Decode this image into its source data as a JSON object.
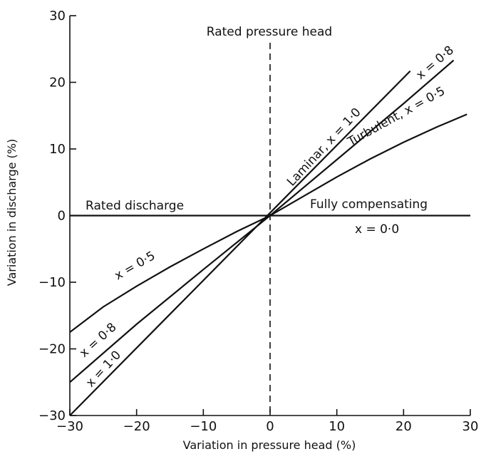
{
  "chart_data": {
    "type": "line",
    "xlabel": "Variation in pressure head (%)",
    "ylabel": "Variation in discharge (%)",
    "xlim": [
      -30,
      30
    ],
    "ylim": [
      -30,
      30
    ],
    "x_ticks": [
      -30,
      -20,
      -10,
      0,
      10,
      20,
      30
    ],
    "y_ticks": [
      -30,
      -20,
      -10,
      0,
      10,
      20,
      30
    ],
    "x_tick_labels": [
      "−30",
      "−20",
      "−10",
      "0",
      "10",
      "20",
      "30"
    ],
    "y_tick_labels": [
      "−30",
      "−20",
      "−10",
      "0",
      "10",
      "20",
      "30"
    ],
    "grid": false,
    "series": [
      {
        "name": "x = 1·0",
        "points": [
          [
            -30,
            -30
          ],
          [
            21,
            21.7
          ]
        ]
      },
      {
        "name": "x = 0·8",
        "points": [
          [
            -30,
            -25
          ],
          [
            -20,
            -16.3
          ],
          [
            -10,
            -8.1
          ],
          [
            0,
            0
          ],
          [
            10,
            8.4
          ],
          [
            20,
            16.8
          ],
          [
            27.5,
            23.3
          ]
        ]
      },
      {
        "name": "x = 0·5",
        "points": [
          [
            -30,
            -17.5
          ],
          [
            -25,
            -13.7
          ],
          [
            -20,
            -10.6
          ],
          [
            -15,
            -7.7
          ],
          [
            -10,
            -5.0
          ],
          [
            -5,
            -2.4
          ],
          [
            0,
            0
          ],
          [
            5,
            2.9
          ],
          [
            10,
            5.8
          ],
          [
            15,
            8.5
          ],
          [
            20,
            11.0
          ],
          [
            25,
            13.3
          ],
          [
            29.5,
            15.2
          ]
        ]
      },
      {
        "name": "x = 0·0",
        "points": [
          [
            -30,
            0
          ],
          [
            30,
            0
          ]
        ]
      }
    ],
    "annotations": {
      "rated_pressure_head": "Rated pressure head",
      "rated_discharge": "Rated discharge",
      "fully_compensating": "Fully compensating",
      "x00": "x = 0·0",
      "laminar": "Laminar, x = 1·0",
      "turbulent": "Turbulent, x = 0·5",
      "x08_top": "x = 0·8",
      "x05_left": "x = 0·5",
      "x08_left": "x = 0·8",
      "x10_left": "x = 1·0"
    }
  }
}
